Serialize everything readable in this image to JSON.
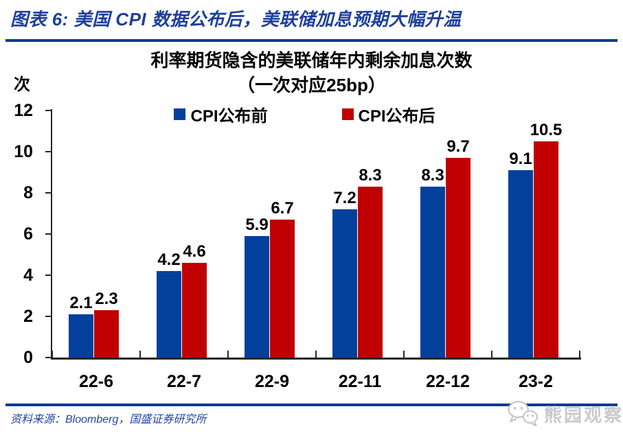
{
  "page": {
    "title": "图表 6: 美国 CPI 数据公布后，美联储加息预期大幅升温"
  },
  "chart_data": {
    "type": "bar",
    "title": "利率期货隐含的美联储年内剩余加息次数",
    "subtitle": "（一次对应25bp）",
    "unit_label": "次",
    "ylabel": "次",
    "xlabel": "",
    "categories": [
      "22-6",
      "22-7",
      "22-9",
      "22-11",
      "22-12",
      "23-2"
    ],
    "series": [
      {
        "name": "CPI公布前",
        "color": "#02409B",
        "values": [
          2.1,
          4.2,
          5.9,
          7.2,
          8.3,
          9.1
        ]
      },
      {
        "name": "CPI公布后",
        "color": "#C00000",
        "values": [
          2.3,
          4.6,
          6.7,
          8.3,
          9.7,
          10.5
        ]
      }
    ],
    "ylim": [
      0,
      12
    ],
    "yticks": [
      0,
      2,
      4,
      6,
      8,
      10,
      12
    ],
    "grid": false,
    "legend_position": "top-center",
    "value_labels": true
  },
  "footer": {
    "source": "资料来源：Bloomberg，国盛证券研究所",
    "watermark": "熊园观察"
  },
  "icons": {
    "watermark": "wechat-icon"
  },
  "colors": {
    "title_blue": "#1E3F9C",
    "rule_navy": "#0B3B8F",
    "bar_blue": "#02409B",
    "bar_red": "#C00000",
    "source_blue": "#2143A6",
    "axis_dark": "#262626",
    "watermark_gray": "#C9C9C9"
  }
}
